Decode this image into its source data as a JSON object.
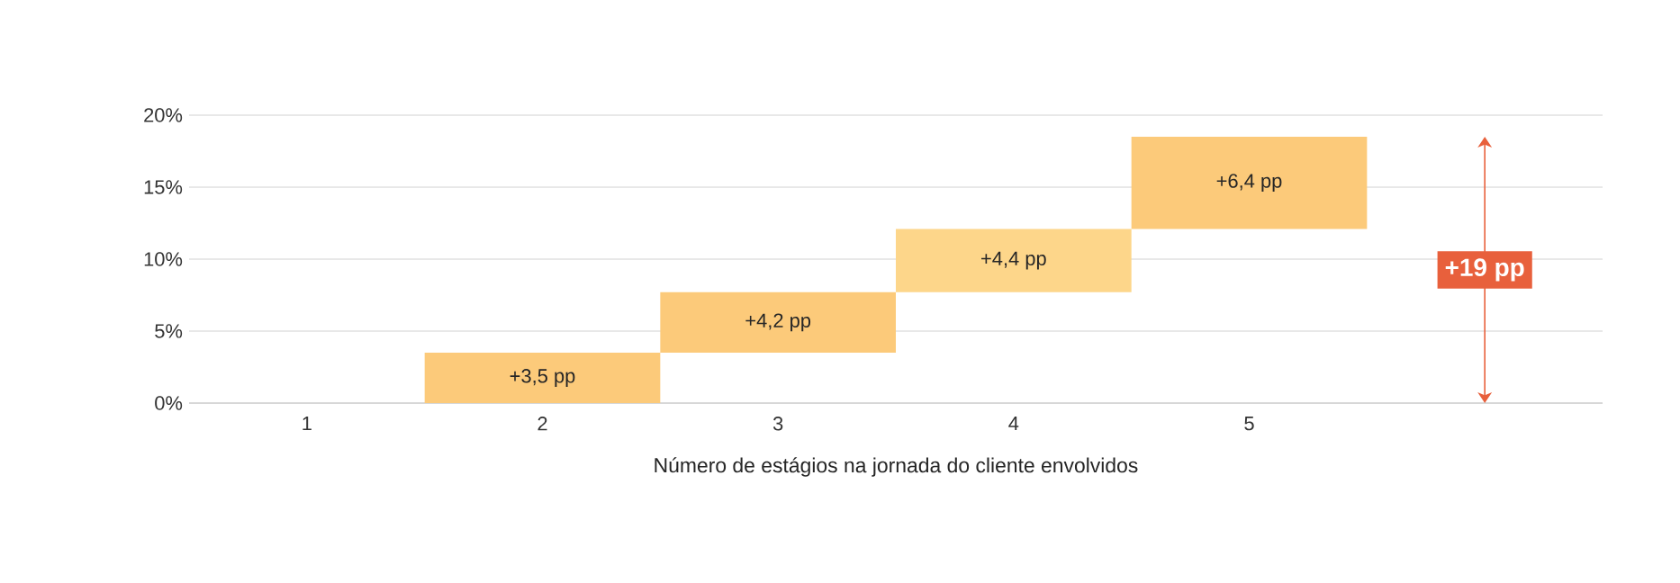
{
  "chart_data": {
    "type": "bar",
    "xlabel": "Número de estágios na jornada do cliente envolvidos",
    "categories": [
      "1",
      "2",
      "3",
      "4",
      "5",
      null
    ],
    "values": [
      null,
      3.5,
      4.2,
      4.4,
      6.4,
      null
    ],
    "base": [
      null,
      0,
      3.5,
      7.7,
      12.1,
      null
    ],
    "colors": [
      "#fcca7a",
      "#fcca7a",
      "#fcca7a",
      "#fdd68a",
      "#fcca7a",
      "#fcca7a"
    ],
    "value_labels": [
      null,
      "+3,5 pp",
      "+4,2 pp",
      "+4,4 pp",
      "+6,4 pp",
      null
    ],
    "ylim": [
      0,
      20
    ],
    "yticks": [
      {
        "value": 0,
        "label": "0%"
      },
      {
        "value": 5,
        "label": "5%"
      },
      {
        "value": 10,
        "label": "10%"
      },
      {
        "value": 15,
        "label": "15%"
      },
      {
        "value": 20,
        "label": "20%"
      }
    ],
    "grid": "y",
    "annotations": [
      "+19 pp"
    ]
  }
}
